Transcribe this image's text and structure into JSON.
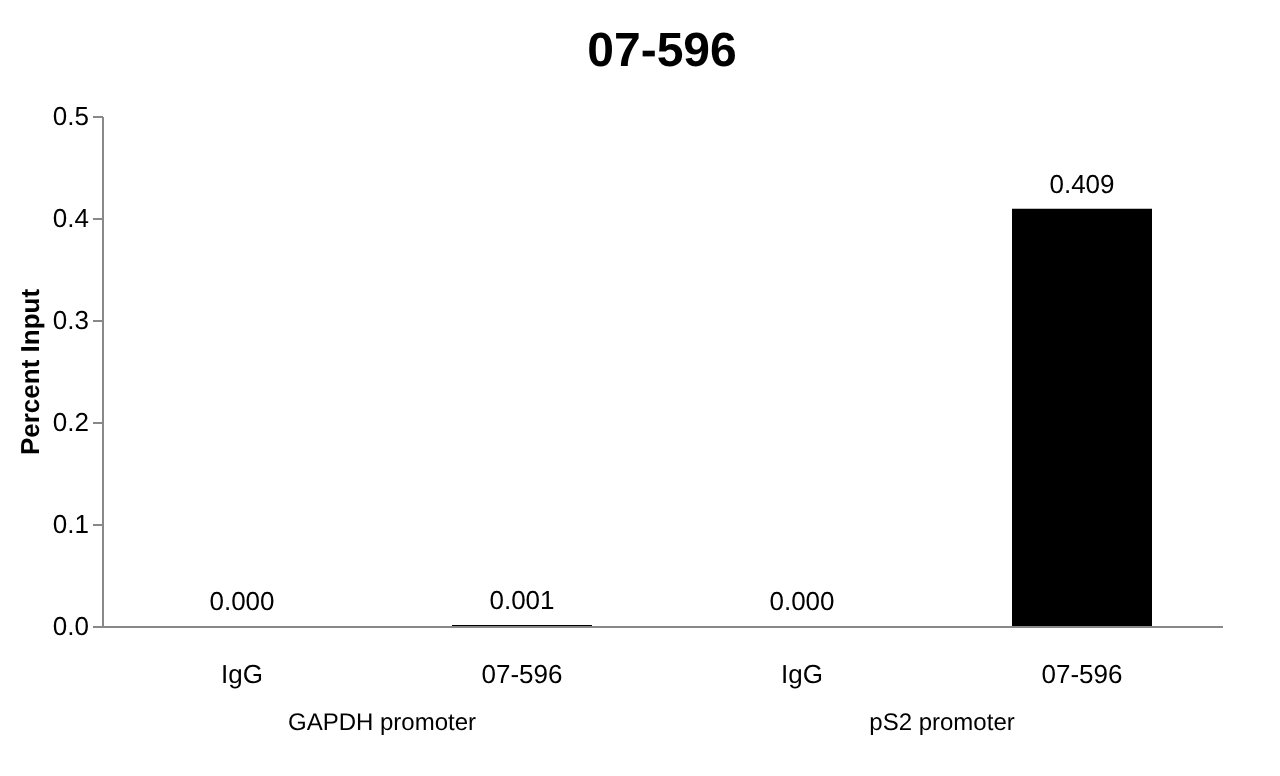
{
  "chart_data": {
    "type": "bar",
    "title": "07-596",
    "ylabel": "Percent Input",
    "categories": [
      "IgG",
      "07-596",
      "IgG",
      "07-596"
    ],
    "values": [
      0.0,
      0.001,
      0.0,
      0.409
    ],
    "value_labels": [
      "0.000",
      "0.001",
      "0.000",
      "0.409"
    ],
    "color": "#000000",
    "ylim": [
      0,
      0.5
    ],
    "yticks": [
      {
        "value": 0,
        "label": "0.0"
      },
      {
        "value": 0.1,
        "label": "0.1"
      },
      {
        "value": 0.2,
        "label": "0.2"
      },
      {
        "value": 0.3,
        "label": "0.3"
      },
      {
        "value": 0.4,
        "label": "0.4"
      },
      {
        "value": 0.5,
        "label": "0.5"
      }
    ],
    "annotations": [
      "GAPDH promoter",
      "pS2 promoter"
    ],
    "grid": false
  }
}
